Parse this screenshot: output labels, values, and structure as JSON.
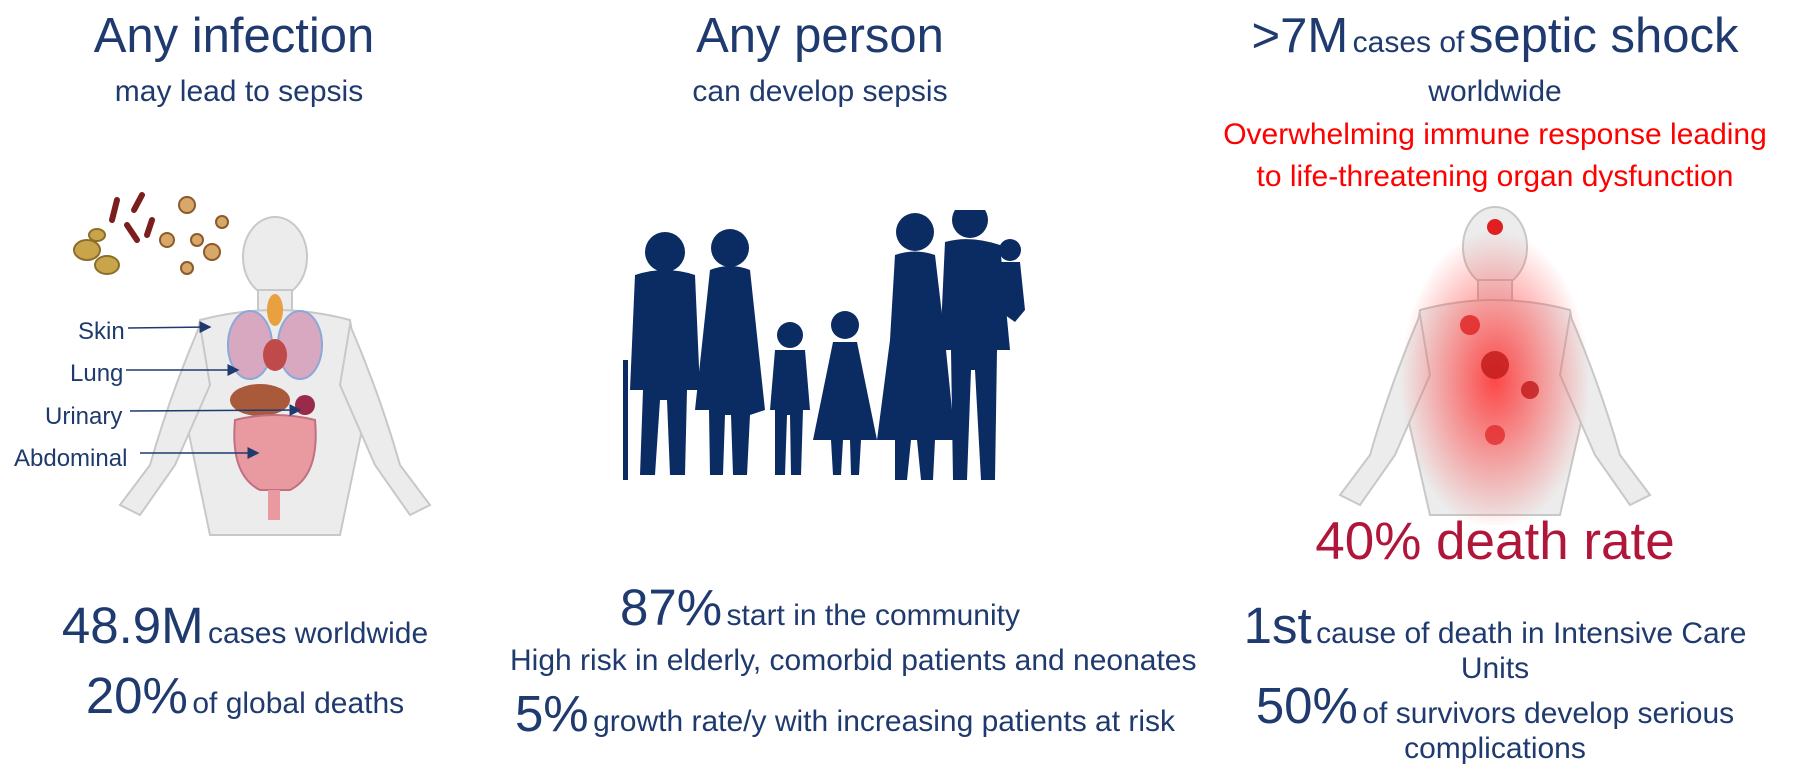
{
  "columns": [
    {
      "title": "Any infection",
      "subtitle": "may lead to sepsis",
      "organs": [
        "Skin",
        "Lung",
        "Urinary",
        "Abdominal"
      ],
      "stats": [
        {
          "value": "48.9M",
          "text": "cases worldwide"
        },
        {
          "value": "20%",
          "text": "of global deaths"
        }
      ]
    },
    {
      "title": "Any person",
      "subtitle": "can develop sepsis",
      "stats": [
        {
          "value": "87%",
          "text": "start in the community"
        },
        {
          "value": "",
          "text": "High risk in elderly, comorbid patients and neonates"
        },
        {
          "value": "5%",
          "text": "growth rate/y with increasing patients at risk"
        }
      ]
    },
    {
      "title_value": ">7M",
      "title_mid": "cases of",
      "title_end": "septic shock",
      "subtitle": "worldwide",
      "definition_line1": "Overwhelming immune response leading",
      "definition_line2": "to life-threatening organ dysfunction",
      "death_rate": "40% death rate",
      "stats": [
        {
          "value": "1st",
          "text": "cause of death in Intensive Care",
          "text2": "Units"
        },
        {
          "value": "50%",
          "text": "of survivors develop serious",
          "text2": "complications"
        }
      ]
    }
  ],
  "colors": {
    "navy": "#1f3a6e",
    "red": "#ff0000",
    "crimson": "#b0163a",
    "silhouette": "#0b2b63"
  }
}
